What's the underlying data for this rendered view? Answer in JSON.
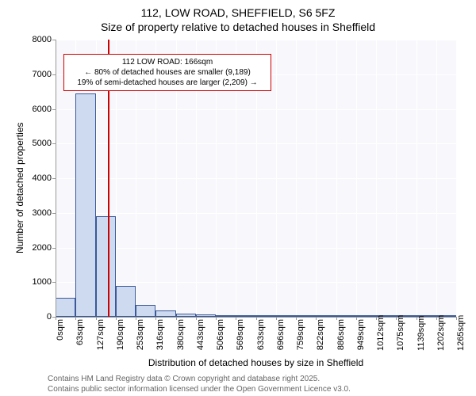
{
  "title_line1": "112, LOW ROAD, SHEFFIELD, S6 5FZ",
  "title_line2": "Size of property relative to detached houses in Sheffield",
  "y_axis_label": "Number of detached properties",
  "x_axis_label": "Distribution of detached houses by size in Sheffield",
  "attribution_line1": "Contains HM Land Registry data © Crown copyright and database right 2025.",
  "attribution_line2": "Contains public sector information licensed under the Open Government Licence v3.0.",
  "chart": {
    "type": "histogram",
    "background_color": "#f8f8fc",
    "grid_color": "#ffffff",
    "bar_fill": "#cedaf0",
    "bar_stroke": "#3b5998",
    "marker_color": "#cc0000",
    "marker_x": 166,
    "ylim": [
      0,
      8000
    ],
    "ytick_step": 1000,
    "x_ticks": [
      0,
      63,
      127,
      190,
      253,
      316,
      380,
      443,
      506,
      569,
      633,
      696,
      759,
      822,
      886,
      949,
      1012,
      1075,
      1139,
      1202,
      1265
    ],
    "x_tick_suffix": "sqm",
    "bars": [
      {
        "x": 0,
        "w": 63,
        "v": 550
      },
      {
        "x": 63,
        "w": 64,
        "v": 6450
      },
      {
        "x": 127,
        "w": 63,
        "v": 2900
      },
      {
        "x": 190,
        "w": 63,
        "v": 900
      },
      {
        "x": 253,
        "w": 63,
        "v": 350
      },
      {
        "x": 316,
        "w": 64,
        "v": 180
      },
      {
        "x": 380,
        "w": 63,
        "v": 100
      },
      {
        "x": 443,
        "w": 63,
        "v": 70
      },
      {
        "x": 506,
        "w": 63,
        "v": 50
      },
      {
        "x": 569,
        "w": 64,
        "v": 20
      },
      {
        "x": 633,
        "w": 63,
        "v": 15
      },
      {
        "x": 696,
        "w": 63,
        "v": 10
      },
      {
        "x": 759,
        "w": 63,
        "v": 8
      },
      {
        "x": 822,
        "w": 64,
        "v": 6
      },
      {
        "x": 886,
        "w": 63,
        "v": 5
      },
      {
        "x": 949,
        "w": 63,
        "v": 4
      },
      {
        "x": 1012,
        "w": 63,
        "v": 3
      },
      {
        "x": 1075,
        "w": 64,
        "v": 2
      },
      {
        "x": 1139,
        "w": 63,
        "v": 2
      },
      {
        "x": 1202,
        "w": 63,
        "v": 1
      }
    ],
    "annotation": {
      "line1": "112 LOW ROAD: 166sqm",
      "line2": "← 80% of detached houses are smaller (9,189)",
      "line3": "19% of semi-detached houses are larger (2,209) →",
      "box_border": "#cc0000",
      "box_bg": "#ffffff",
      "fontsize": 10
    }
  }
}
